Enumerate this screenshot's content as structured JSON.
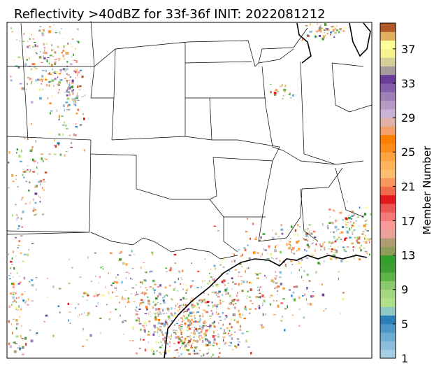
{
  "map": {
    "title": "Reflectivity >40dBZ for 33f-36f INIT: 2022081212",
    "colorbar": {
      "label": "Member Number",
      "lim": [
        1,
        40
      ],
      "ticks": [
        1,
        5,
        9,
        13,
        17,
        21,
        25,
        29,
        33,
        37
      ],
      "colors": [
        "#a6cee3",
        "#8cbedc",
        "#6faed4",
        "#4d97c8",
        "#2a7fb8",
        "#8ec7c4",
        "#b2df8a",
        "#a5d681",
        "#8cc96e",
        "#5fb448",
        "#3f9f34",
        "#33a02c",
        "#8f9c5a",
        "#b09c72",
        "#e9a39a",
        "#fb9a99",
        "#f47a79",
        "#ee5555",
        "#e31a1c",
        "#f26b4a",
        "#f9975e",
        "#fdbf6f",
        "#fdb35a",
        "#fda440",
        "#fe8d1c",
        "#ff7f00",
        "#f5a06a",
        "#e0b1a6",
        "#cab2d6",
        "#b59ac6",
        "#9e7fb6",
        "#845ea8",
        "#6a3d9a",
        "#a89c9a",
        "#d5ce9a",
        "#f6f28e",
        "#ffff99",
        "#e0b060",
        "#b15928"
      ]
    }
  }
}
